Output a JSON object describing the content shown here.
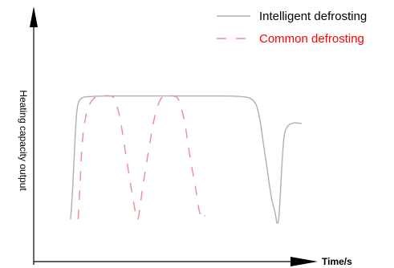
{
  "chart_data": {
    "type": "line",
    "title": "",
    "xlabel": "Time/s",
    "ylabel": "Heating capacity output",
    "grid": false,
    "legend_position": "top-right",
    "series": [
      {
        "name": "Intelligent defrosting",
        "color": "#b0b0b0",
        "style": "solid",
        "points": [
          [
            0,
            0.03
          ],
          [
            1,
            0.25
          ],
          [
            2,
            0.55
          ],
          [
            3,
            0.82
          ],
          [
            4,
            0.93
          ],
          [
            6,
            0.975
          ],
          [
            10,
            0.985
          ],
          [
            20,
            0.99
          ],
          [
            40,
            0.99
          ],
          [
            60,
            0.99
          ],
          [
            80,
            0.99
          ],
          [
            90,
            0.985
          ],
          [
            95,
            0.97
          ],
          [
            98,
            0.92
          ],
          [
            100,
            0.8
          ],
          [
            102,
            0.6
          ],
          [
            104,
            0.4
          ],
          [
            106,
            0.2
          ],
          [
            108,
            0.08
          ],
          [
            109,
            0.0
          ],
          [
            110,
            0.05
          ],
          [
            111,
            0.3
          ],
          [
            112,
            0.55
          ],
          [
            113,
            0.7
          ],
          [
            115,
            0.76
          ],
          [
            118,
            0.78
          ],
          [
            122,
            0.775
          ]
        ]
      },
      {
        "name": "Common defrosting",
        "color": "#f08a8a",
        "style": "dashed",
        "points": [
          [
            4,
            0.03
          ],
          [
            5,
            0.3
          ],
          [
            6,
            0.6
          ],
          [
            8,
            0.83
          ],
          [
            11,
            0.95
          ],
          [
            15,
            0.99
          ],
          [
            20,
            0.99
          ],
          [
            23,
            0.97
          ],
          [
            26,
            0.82
          ],
          [
            29,
            0.55
          ],
          [
            32,
            0.27
          ],
          [
            34,
            0.1
          ],
          [
            35,
            0.03
          ],
          [
            36,
            0.06
          ],
          [
            38,
            0.27
          ],
          [
            41,
            0.55
          ],
          [
            44,
            0.8
          ],
          [
            47,
            0.95
          ],
          [
            50,
            0.99
          ],
          [
            54,
            0.99
          ],
          [
            57,
            0.96
          ],
          [
            60,
            0.8
          ],
          [
            63,
            0.52
          ],
          [
            66,
            0.27
          ],
          [
            68,
            0.09
          ],
          [
            70,
            0.03
          ],
          [
            71,
            0.06
          ]
        ]
      }
    ]
  }
}
